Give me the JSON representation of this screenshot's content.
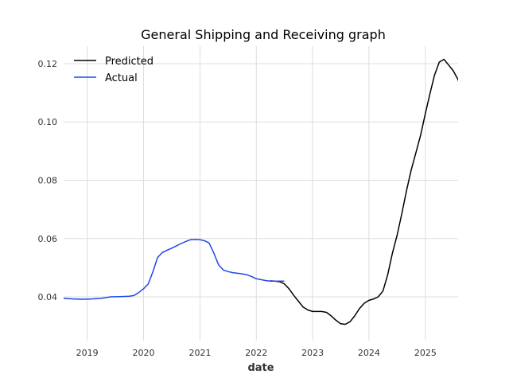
{
  "chart_data": {
    "type": "line",
    "title": "General Shipping and Receiving graph",
    "xlabel": "date",
    "ylabel": "",
    "x_type": "date",
    "xlim": [
      "2018-08-01",
      "2025-08-01"
    ],
    "ylim": [
      0.025,
      0.126
    ],
    "x_ticks": [
      "2019",
      "2020",
      "2021",
      "2022",
      "2023",
      "2024",
      "2025"
    ],
    "y_ticks": [
      0.04,
      0.06,
      0.08,
      0.1,
      0.12
    ],
    "y_tick_labels": [
      "0.04",
      "0.06",
      "0.08",
      "0.10",
      "0.12"
    ],
    "grid": true,
    "legend_position": "top-left",
    "series": [
      {
        "name": "Predicted",
        "color": "#000000",
        "points": [
          [
            "2022-04-01",
            0.0455
          ],
          [
            "2022-05-01",
            0.0454
          ],
          [
            "2022-06-01",
            0.0452
          ],
          [
            "2022-07-01",
            0.0445
          ],
          [
            "2022-08-01",
            0.0428
          ],
          [
            "2022-09-01",
            0.0405
          ],
          [
            "2022-10-01",
            0.0385
          ],
          [
            "2022-11-01",
            0.0365
          ],
          [
            "2022-12-01",
            0.0355
          ],
          [
            "2023-01-01",
            0.035
          ],
          [
            "2023-03-01",
            0.035
          ],
          [
            "2023-04-01",
            0.0347
          ],
          [
            "2023-05-01",
            0.0335
          ],
          [
            "2023-06-01",
            0.032
          ],
          [
            "2023-07-01",
            0.0308
          ],
          [
            "2023-08-01",
            0.0306
          ],
          [
            "2023-09-01",
            0.0315
          ],
          [
            "2023-10-01",
            0.0335
          ],
          [
            "2023-11-01",
            0.036
          ],
          [
            "2023-12-01",
            0.0378
          ],
          [
            "2024-01-01",
            0.0388
          ],
          [
            "2024-02-01",
            0.0393
          ],
          [
            "2024-03-01",
            0.04
          ],
          [
            "2024-04-01",
            0.042
          ],
          [
            "2024-05-01",
            0.0475
          ],
          [
            "2024-06-01",
            0.055
          ],
          [
            "2024-07-01",
            0.061
          ],
          [
            "2024-08-01",
            0.0685
          ],
          [
            "2024-09-01",
            0.0765
          ],
          [
            "2024-10-01",
            0.0835
          ],
          [
            "2024-11-01",
            0.0895
          ],
          [
            "2024-12-01",
            0.0955
          ],
          [
            "2025-01-01",
            0.103
          ],
          [
            "2025-02-01",
            0.11
          ],
          [
            "2025-03-01",
            0.116
          ],
          [
            "2025-04-01",
            0.1205
          ],
          [
            "2025-05-01",
            0.1215
          ],
          [
            "2025-06-01",
            0.1195
          ],
          [
            "2025-07-01",
            0.1175
          ],
          [
            "2025-08-01",
            0.1145
          ],
          [
            "2025-09-01",
            0.109
          ]
        ]
      },
      {
        "name": "Actual",
        "color": "#1f47ea",
        "points": [
          [
            "2018-08-01",
            0.0395
          ],
          [
            "2018-10-01",
            0.0393
          ],
          [
            "2018-12-01",
            0.0392
          ],
          [
            "2019-02-01",
            0.0393
          ],
          [
            "2019-04-01",
            0.0395
          ],
          [
            "2019-06-01",
            0.04
          ],
          [
            "2019-08-01",
            0.0401
          ],
          [
            "2019-10-01",
            0.0402
          ],
          [
            "2019-11-01",
            0.0405
          ],
          [
            "2019-12-01",
            0.0415
          ],
          [
            "2020-01-01",
            0.0428
          ],
          [
            "2020-02-01",
            0.0445
          ],
          [
            "2020-03-01",
            0.0485
          ],
          [
            "2020-04-01",
            0.0535
          ],
          [
            "2020-05-01",
            0.0552
          ],
          [
            "2020-06-01",
            0.056
          ],
          [
            "2020-07-01",
            0.0567
          ],
          [
            "2020-08-01",
            0.0575
          ],
          [
            "2020-09-01",
            0.0583
          ],
          [
            "2020-10-01",
            0.059
          ],
          [
            "2020-11-01",
            0.0596
          ],
          [
            "2020-12-01",
            0.0597
          ],
          [
            "2021-01-01",
            0.0596
          ],
          [
            "2021-02-01",
            0.0592
          ],
          [
            "2021-03-01",
            0.0585
          ],
          [
            "2021-04-01",
            0.055
          ],
          [
            "2021-05-01",
            0.051
          ],
          [
            "2021-06-01",
            0.0492
          ],
          [
            "2021-07-01",
            0.0487
          ],
          [
            "2021-08-01",
            0.0483
          ],
          [
            "2021-09-01",
            0.0481
          ],
          [
            "2021-10-01",
            0.0479
          ],
          [
            "2021-11-01",
            0.0476
          ],
          [
            "2021-12-01",
            0.047
          ],
          [
            "2022-01-01",
            0.0462
          ],
          [
            "2022-02-01",
            0.0459
          ],
          [
            "2022-03-01",
            0.0456
          ],
          [
            "2022-04-01",
            0.0454
          ],
          [
            "2022-05-01",
            0.0454
          ],
          [
            "2022-06-01",
            0.0454
          ],
          [
            "2022-07-01",
            0.0454
          ]
        ]
      }
    ]
  }
}
